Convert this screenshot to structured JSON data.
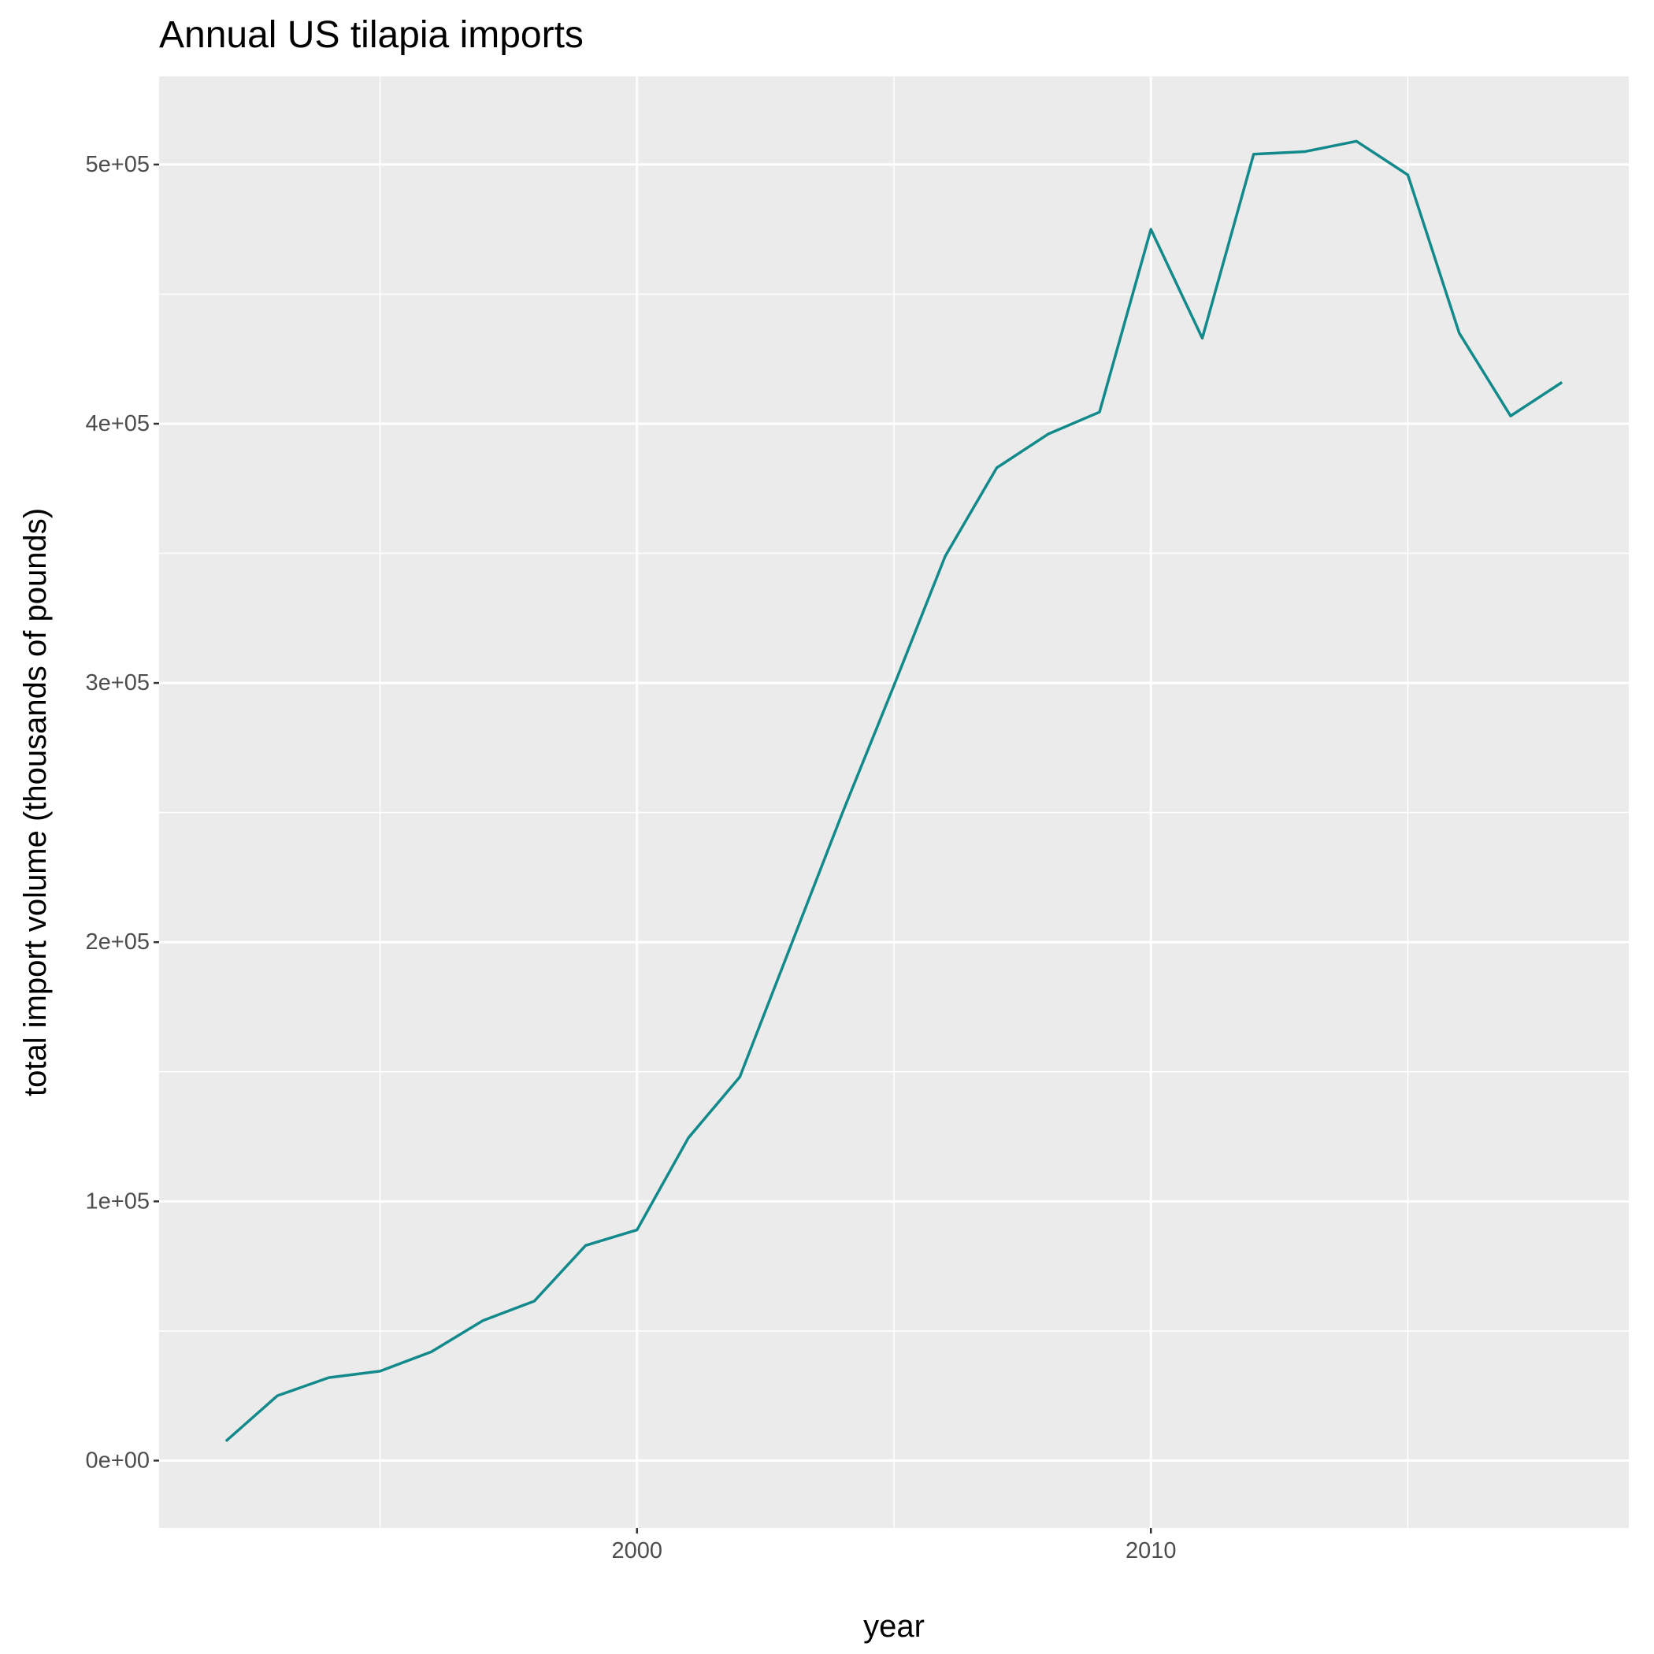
{
  "chart_data": {
    "type": "line",
    "title": "Annual US tilapia imports",
    "xlabel": "year",
    "ylabel": "total import volume (thousands of pounds)",
    "xlim": [
      1990.7,
      2019.3
    ],
    "ylim": [
      -26000,
      534000
    ],
    "x_major_ticks": [
      2000,
      2010
    ],
    "x_minor_ticks": [
      1995,
      2005,
      2015
    ],
    "y_major_ticks": [
      0,
      100000,
      200000,
      300000,
      400000,
      500000
    ],
    "y_minor_ticks": [
      50000,
      150000,
      250000,
      350000,
      450000
    ],
    "x_tick_labels": [
      "2000",
      "2010"
    ],
    "y_tick_labels": [
      "0e+00",
      "1e+05",
      "2e+05",
      "3e+05",
      "4e+05",
      "5e+05"
    ],
    "grid": true,
    "colors": {
      "panel_background": "#EBEBEB",
      "grid_major": "#FFFFFF",
      "grid_minor": "#FFFFFF",
      "line": "#12898A"
    },
    "series": [
      {
        "x": [
          1992,
          1993,
          1994,
          1995,
          1996,
          1997,
          1998,
          1999,
          2000,
          2001,
          2002,
          2003,
          2004,
          2005,
          2006,
          2007,
          2008,
          2009,
          2010,
          2011,
          2012,
          2013,
          2014,
          2015,
          2016,
          2017,
          2018
        ],
        "y": [
          7500,
          25000,
          32000,
          34500,
          42000,
          54000,
          61500,
          83000,
          89000,
          124500,
          148000,
          199000,
          250000,
          299000,
          349000,
          383000,
          396000,
          404500,
          475000,
          433000,
          504000,
          505000,
          509000,
          496000,
          435000,
          403000,
          416000
        ]
      }
    ]
  }
}
